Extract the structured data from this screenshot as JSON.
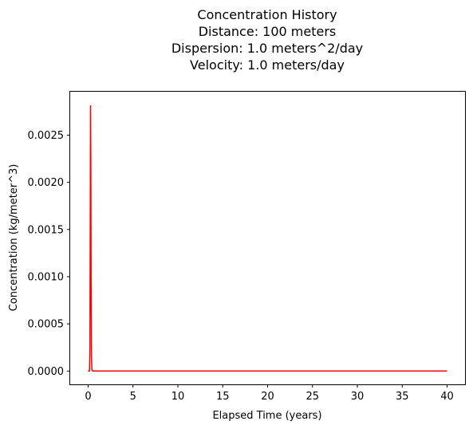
{
  "chart_data": {
    "type": "line",
    "title_lines": [
      "Concentration History",
      "Distance: 100 meters",
      "Dispersion: 1.0 meters^2/day",
      "Velocity: 1.0 meters/day"
    ],
    "xlabel": "Elapsed Time (years)",
    "ylabel": "Concentration  (kg/meter^3)",
    "xlim": [
      -2.0,
      42.0
    ],
    "ylim": [
      -0.000141,
      0.00296
    ],
    "x_ticks": [
      0,
      5,
      10,
      15,
      20,
      25,
      30,
      35,
      40
    ],
    "x_tick_labels": [
      "0",
      "5",
      "10",
      "15",
      "20",
      "25",
      "30",
      "35",
      "40"
    ],
    "y_ticks": [
      0.0,
      0.0005,
      0.001,
      0.0015,
      0.002,
      0.0025
    ],
    "y_tick_labels": [
      "0.0000",
      "0.0005",
      "0.0010",
      "0.0015",
      "0.0020",
      "0.0025"
    ],
    "grid": false,
    "series": [
      {
        "color": "#ff0000",
        "x": [
          0.0,
          0.15,
          0.2,
          0.24,
          0.27,
          0.3,
          0.33,
          0.37,
          0.42,
          0.5,
          0.6,
          1.0,
          5,
          10,
          20,
          30,
          40
        ],
        "y": [
          0.0,
          0.0,
          0.00025,
          0.0018,
          0.00281,
          0.0022,
          0.0009,
          0.00015,
          2e-05,
          0.0,
          0.0,
          0.0,
          0.0,
          0.0,
          0.0,
          0.0,
          0.0
        ]
      }
    ]
  }
}
